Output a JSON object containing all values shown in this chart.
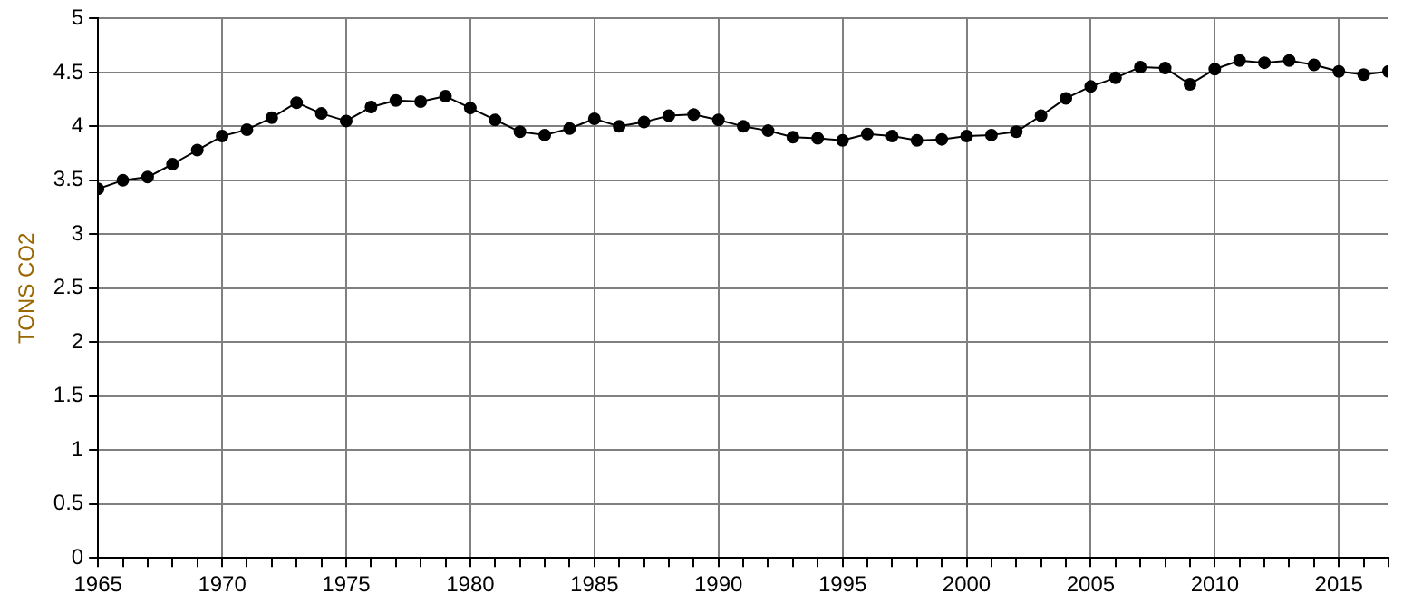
{
  "chart_data": {
    "type": "line",
    "ylabel": "TONS CO2",
    "marker": "circle",
    "grid": true,
    "line_style": "solid",
    "x": [
      1965,
      1966,
      1967,
      1968,
      1969,
      1970,
      1971,
      1972,
      1973,
      1974,
      1975,
      1976,
      1977,
      1978,
      1979,
      1980,
      1981,
      1982,
      1983,
      1984,
      1985,
      1986,
      1987,
      1988,
      1989,
      1990,
      1991,
      1992,
      1993,
      1994,
      1995,
      1996,
      1997,
      1998,
      1999,
      2000,
      2001,
      2002,
      2003,
      2004,
      2005,
      2006,
      2007,
      2008,
      2009,
      2010,
      2011,
      2012,
      2013,
      2014,
      2015,
      2016,
      2017
    ],
    "series": [
      {
        "color": "#000000",
        "values": [
          3.42,
          3.5,
          3.53,
          3.65,
          3.78,
          3.91,
          3.97,
          4.08,
          4.22,
          4.12,
          4.05,
          4.18,
          4.24,
          4.23,
          4.28,
          4.17,
          4.06,
          3.95,
          3.92,
          3.98,
          4.07,
          4.0,
          4.04,
          4.1,
          4.11,
          4.06,
          4.0,
          3.96,
          3.9,
          3.89,
          3.87,
          3.93,
          3.91,
          3.87,
          3.88,
          3.91,
          3.92,
          3.95,
          4.1,
          4.26,
          4.37,
          4.45,
          4.55,
          4.54,
          4.39,
          4.53,
          4.61,
          4.59,
          4.61,
          4.57,
          4.51,
          4.48,
          4.51
        ]
      }
    ],
    "xlim": [
      1965,
      2017
    ],
    "xticks": [
      1965,
      {
        "value": 1966,
        "label": null
      },
      {
        "value": 1967,
        "label": null
      },
      {
        "value": 1968,
        "label": null
      },
      {
        "value": 1969,
        "label": null
      },
      1970,
      {
        "value": 1971,
        "label": null
      },
      {
        "value": 1972,
        "label": null
      },
      {
        "value": 1973,
        "label": null
      },
      {
        "value": 1974,
        "label": null
      },
      1975,
      {
        "value": 1976,
        "label": null
      },
      {
        "value": 1977,
        "label": null
      },
      {
        "value": 1978,
        "label": null
      },
      {
        "value": 1979,
        "label": null
      },
      1980,
      {
        "value": 1981,
        "label": null
      },
      {
        "value": 1982,
        "label": null
      },
      {
        "value": 1983,
        "label": null
      },
      {
        "value": 1984,
        "label": null
      },
      1985,
      {
        "value": 1986,
        "label": null
      },
      {
        "value": 1987,
        "label": null
      },
      {
        "value": 1988,
        "label": null
      },
      {
        "value": 1989,
        "label": null
      },
      1990,
      {
        "value": 1991,
        "label": null
      },
      {
        "value": 1992,
        "label": null
      },
      {
        "value": 1993,
        "label": null
      },
      {
        "value": 1994,
        "label": null
      },
      1995,
      {
        "value": 1996,
        "label": null
      },
      {
        "value": 1997,
        "label": null
      },
      {
        "value": 1998,
        "label": null
      },
      {
        "value": 1999,
        "label": null
      },
      2000,
      {
        "value": 2001,
        "label": null
      },
      {
        "value": 2002,
        "label": null
      },
      {
        "value": 2003,
        "label": null
      },
      {
        "value": 2004,
        "label": null
      },
      2005,
      {
        "value": 2006,
        "label": null
      },
      {
        "value": 2007,
        "label": null
      },
      {
        "value": 2008,
        "label": null
      },
      {
        "value": 2009,
        "label": null
      },
      2010,
      {
        "value": 2011,
        "label": null
      },
      {
        "value": 2012,
        "label": null
      },
      {
        "value": 2013,
        "label": null
      },
      {
        "value": 2014,
        "label": null
      },
      2015,
      {
        "value": 2016,
        "label": null
      },
      {
        "value": 2017,
        "label": null
      }
    ],
    "ylim": [
      0,
      5
    ],
    "yticks": [
      0,
      0.5,
      1,
      1.5,
      2,
      2.5,
      3,
      3.5,
      4,
      4.5,
      5
    ]
  }
}
